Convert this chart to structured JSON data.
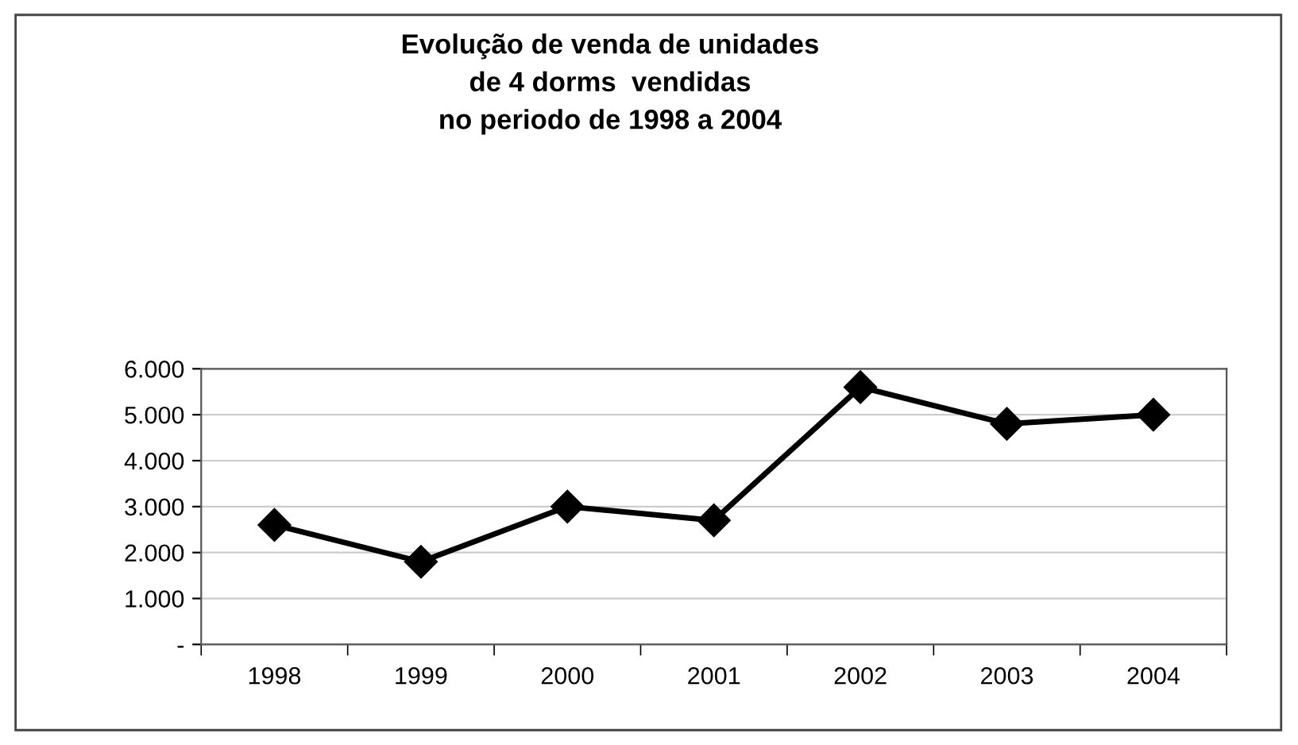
{
  "chart_data": {
    "type": "line",
    "title": "Evolução de venda de unidades\nde 4 dorms  vendidas\nno periodo de 1998 a 2004",
    "categories": [
      "1998",
      "1999",
      "2000",
      "2001",
      "2002",
      "2003",
      "2004"
    ],
    "series": [
      {
        "color": "#000000",
        "values": [
          2600,
          1800,
          3000,
          2700,
          5600,
          4800,
          5000
        ]
      }
    ],
    "ylim": [
      0,
      6000
    ],
    "yticks": [
      {
        "value": 0,
        "label": "-"
      },
      {
        "value": 1000,
        "label": "1.000"
      },
      {
        "value": 2000,
        "label": "2.000"
      },
      {
        "value": 3000,
        "label": "3.000"
      },
      {
        "value": 4000,
        "label": "4.000"
      },
      {
        "value": 5000,
        "label": "5.000"
      },
      {
        "value": 6000,
        "label": "6.000"
      }
    ],
    "grid": "y",
    "marker": "diamond",
    "line_style": "solid"
  }
}
